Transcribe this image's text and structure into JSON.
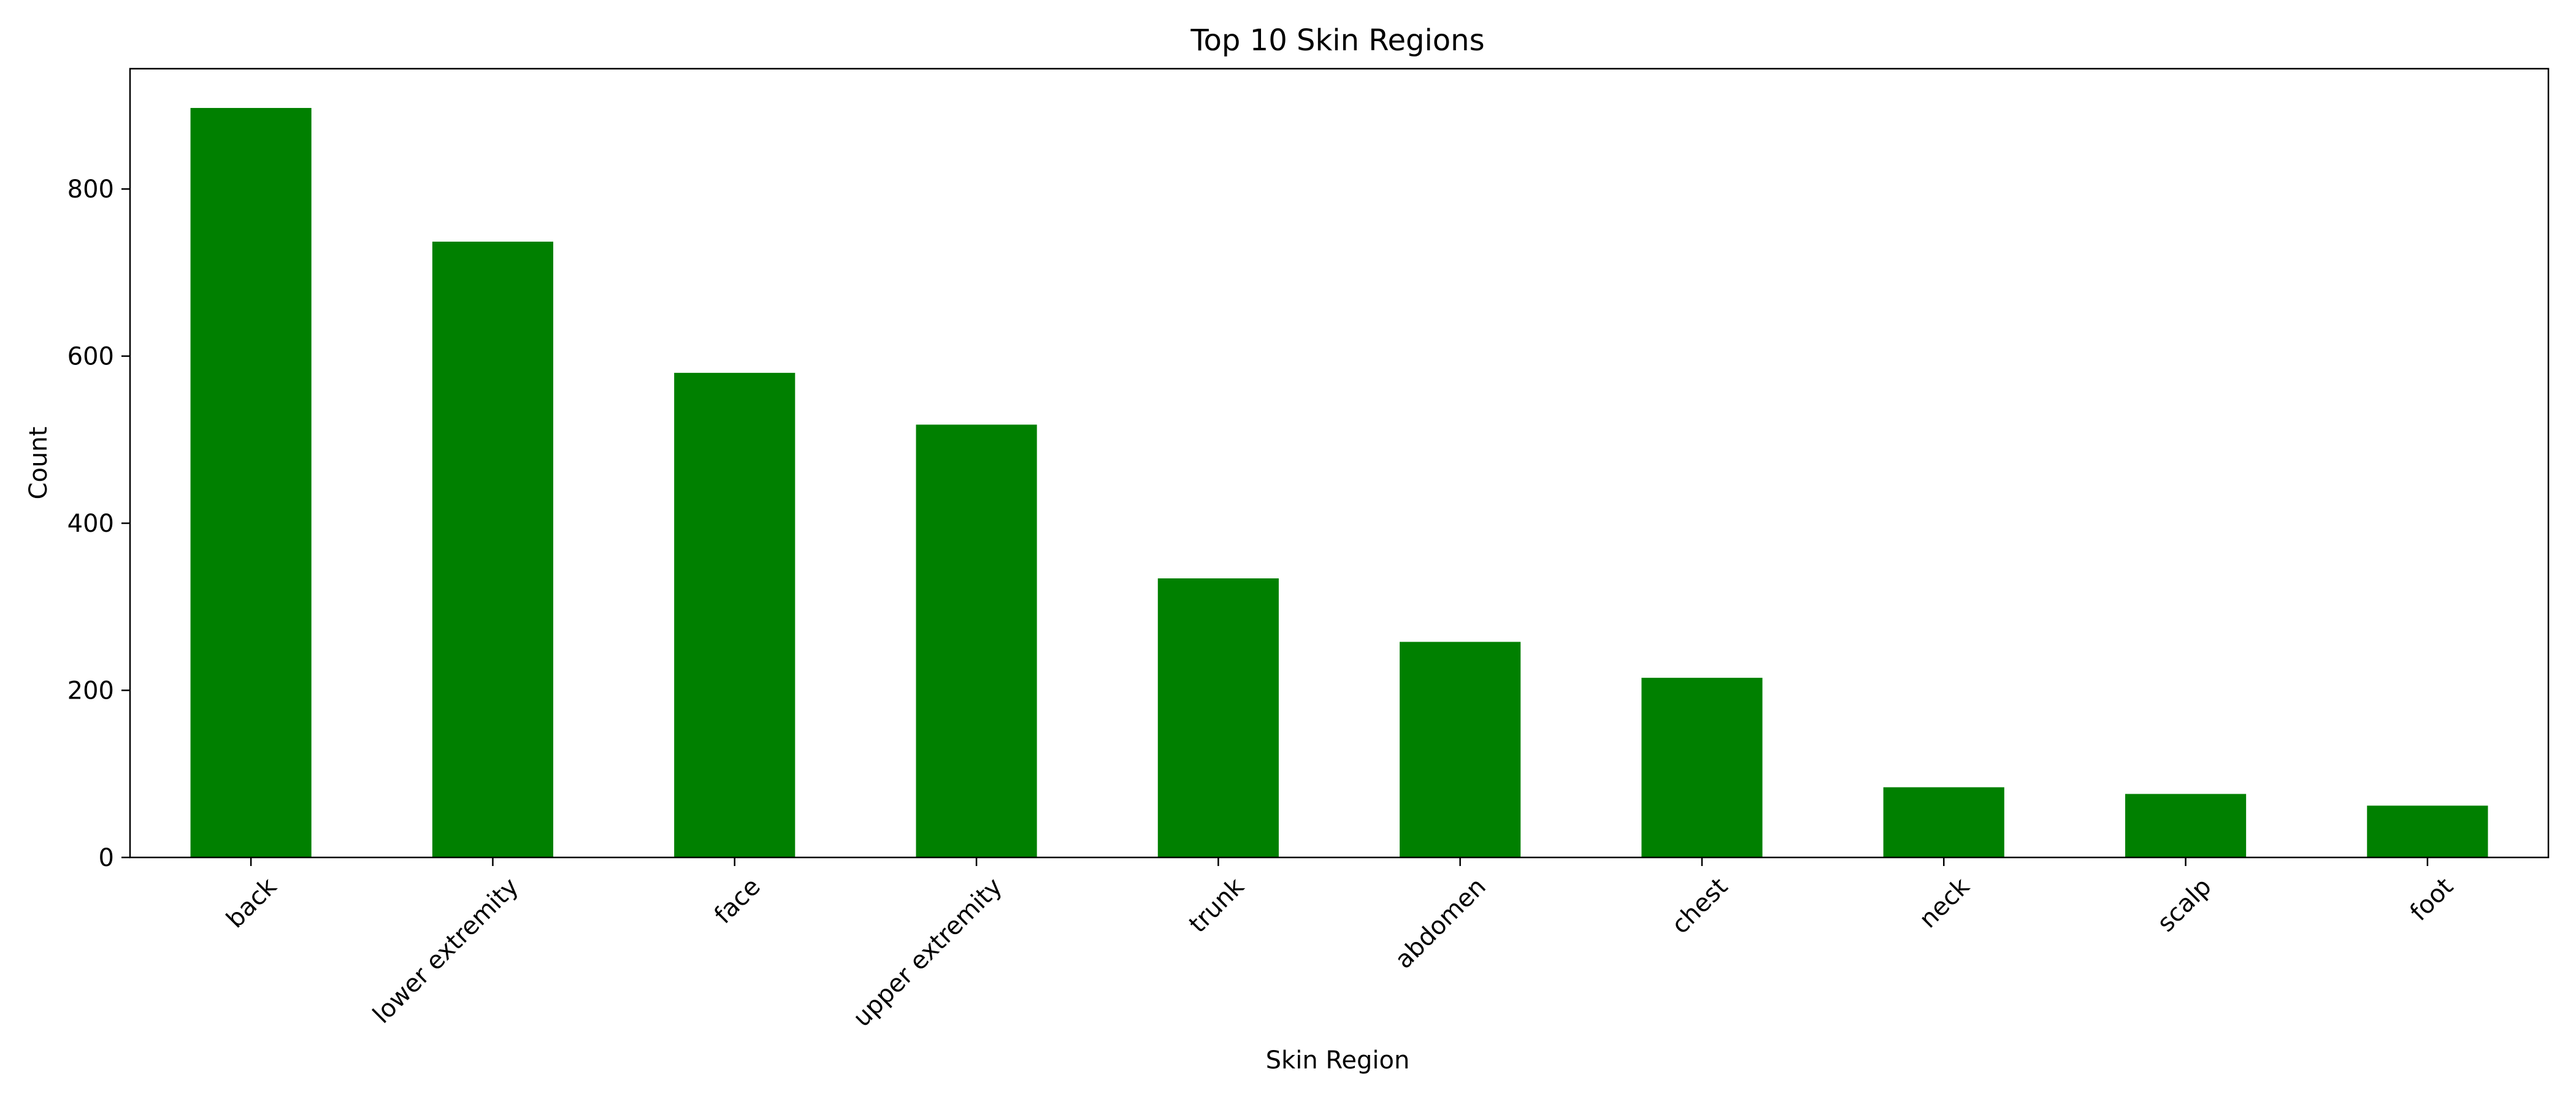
{
  "chart_data": {
    "type": "bar",
    "title": "Top 10 Skin Regions",
    "xlabel": "Skin Region",
    "ylabel": "Count",
    "categories": [
      "back",
      "lower extremity",
      "face",
      "upper extremity",
      "trunk",
      "abdomen",
      "chest",
      "neck",
      "scalp",
      "foot"
    ],
    "values": [
      897,
      737,
      580,
      518,
      334,
      258,
      215,
      84,
      76,
      62
    ],
    "ylim": [
      0,
      944
    ],
    "yticks": [
      0,
      200,
      400,
      600,
      800
    ],
    "bar_color": "#008000",
    "grid": false,
    "legend": false
  }
}
